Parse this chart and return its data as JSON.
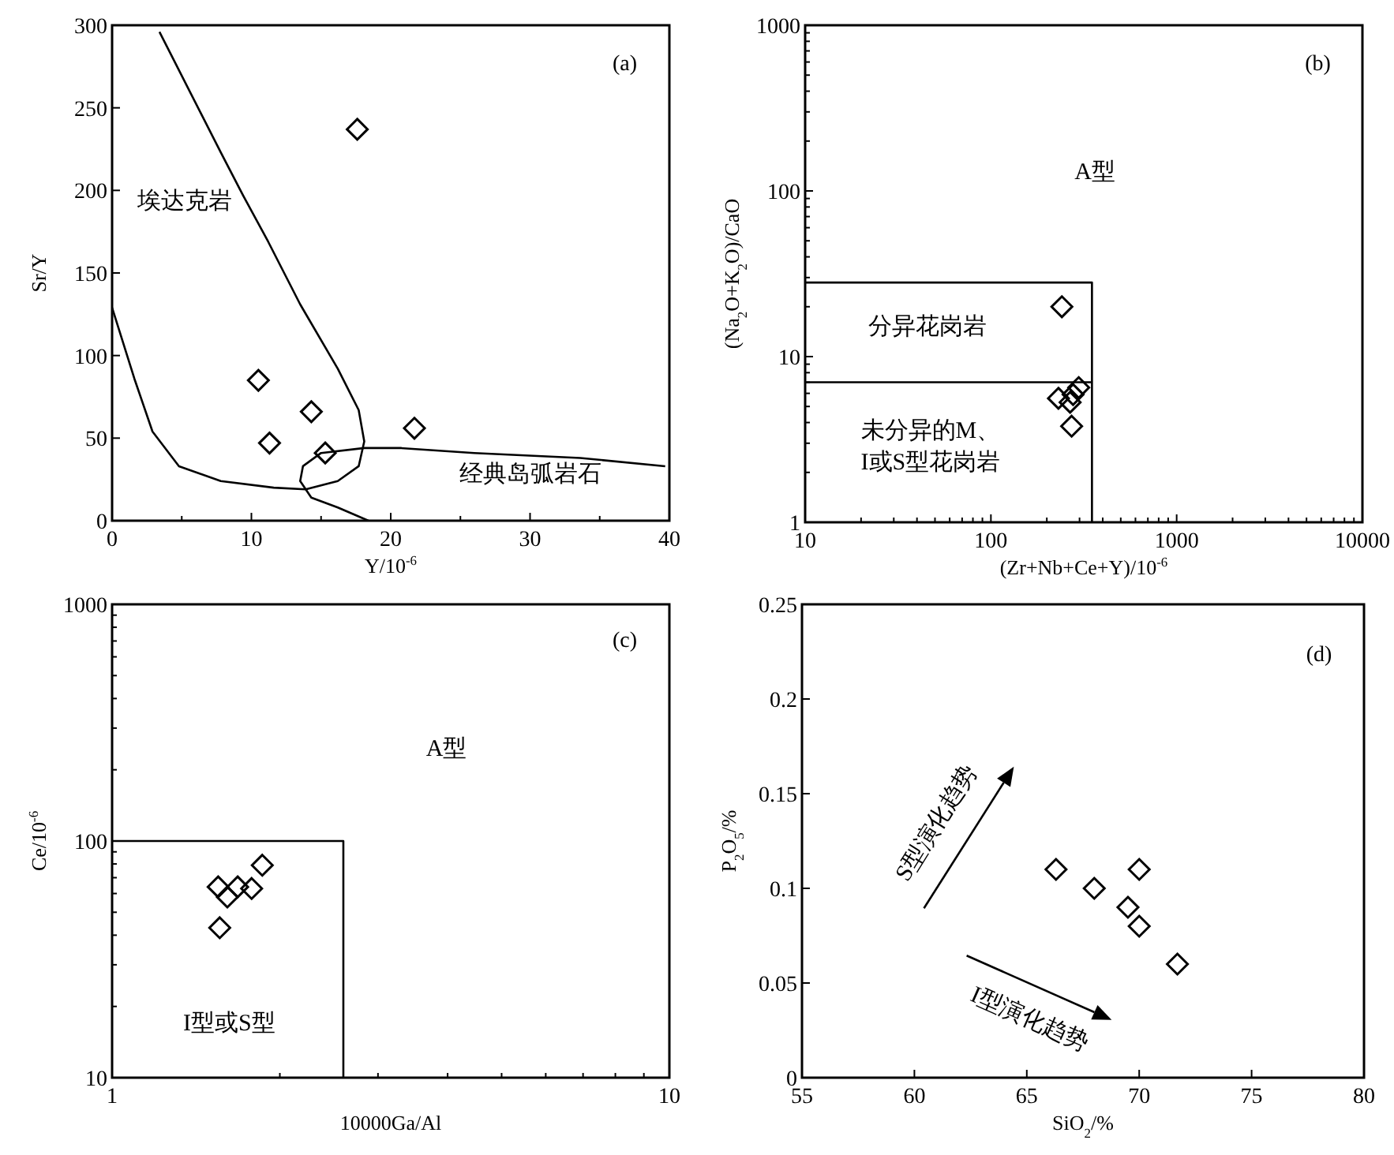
{
  "chart_data": [
    {
      "type": "scatter",
      "xlabel": "Y/10$^{-6}$",
      "ylabel": "Sr/Y",
      "xlim": [
        0,
        40
      ],
      "ylim": [
        0,
        300
      ],
      "xticks": [
        0,
        {
          "value": 5,
          "label": null
        },
        10,
        {
          "value": 15,
          "label": null
        },
        20,
        {
          "value": 25,
          "label": null
        },
        30,
        {
          "value": 35,
          "label": null
        },
        40
      ],
      "yticks": [
        0,
        50,
        100,
        150,
        200,
        250,
        300
      ],
      "annotations": [
        "(a)",
        "埃达克岩",
        "经典岛弧岩石"
      ],
      "series": [
        {
          "color": "#000000",
          "marker": "diamond",
          "x": [
            17.6,
            10.5,
            14.3,
            11.3,
            15.3,
            21.7
          ],
          "values": [
            237,
            85,
            66,
            47,
            41,
            56
          ]
        },
        {
          "type": "line",
          "color": "#000000",
          "x": [
            3.4,
            7.8,
            9.4,
            11.2,
            13.5,
            16.2,
            17.7,
            18.1,
            17.7,
            16.2,
            13.9,
            11.6,
            7.8,
            4.8,
            2.9,
            1.6,
            0
          ],
          "values": [
            296,
            223,
            197,
            169,
            131,
            92,
            67,
            48,
            33,
            24,
            19,
            20,
            24,
            33,
            54,
            86,
            129
          ]
        },
        {
          "type": "line",
          "color": "#000000",
          "x": [
            18.4,
            16.2,
            14.3,
            13.5,
            13.7,
            15,
            18.1,
            20.7,
            26,
            33.6,
            39.7
          ],
          "values": [
            0,
            8,
            14,
            24,
            33,
            41,
            44,
            44,
            41,
            38,
            33
          ]
        }
      ]
    },
    {
      "type": "scatter",
      "xlabel": "(Zr+Nb+Ce+Y)/10$^{-6}$",
      "ylabel": "(Na$_{2}$O+K$_{2}$O)/CaO",
      "log": "xy",
      "xlim": [
        10,
        10000
      ],
      "ylim": [
        1,
        1000
      ],
      "xticks": [
        10,
        {
          "value": 20,
          "label": null
        },
        {
          "value": 30,
          "label": null
        },
        {
          "value": 40,
          "label": null
        },
        {
          "value": 50,
          "label": null
        },
        {
          "value": 60,
          "label": null
        },
        {
          "value": 70,
          "label": null
        },
        {
          "value": 80,
          "label": null
        },
        {
          "value": 90,
          "label": null
        },
        100,
        {
          "value": 200,
          "label": null
        },
        {
          "value": 300,
          "label": null
        },
        {
          "value": 400,
          "label": null
        },
        {
          "value": 500,
          "label": null
        },
        {
          "value": 600,
          "label": null
        },
        {
          "value": 700,
          "label": null
        },
        {
          "value": 800,
          "label": null
        },
        {
          "value": 900,
          "label": null
        },
        1000,
        {
          "value": 2000,
          "label": null
        },
        {
          "value": 3000,
          "label": null
        },
        {
          "value": 4000,
          "label": null
        },
        {
          "value": 5000,
          "label": null
        },
        {
          "value": 6000,
          "label": null
        },
        {
          "value": 7000,
          "label": null
        },
        {
          "value": 8000,
          "label": null
        },
        {
          "value": 9000,
          "label": null
        },
        10000
      ],
      "yticks": [
        1,
        {
          "value": 2,
          "label": null
        },
        {
          "value": 3,
          "label": null
        },
        {
          "value": 4,
          "label": null
        },
        {
          "value": 5,
          "label": null
        },
        {
          "value": 6,
          "label": null
        },
        {
          "value": 7,
          "label": null
        },
        {
          "value": 8,
          "label": null
        },
        {
          "value": 9,
          "label": null
        },
        10,
        {
          "value": 20,
          "label": null
        },
        {
          "value": 30,
          "label": null
        },
        {
          "value": 40,
          "label": null
        },
        {
          "value": 50,
          "label": null
        },
        {
          "value": 60,
          "label": null
        },
        {
          "value": 70,
          "label": null
        },
        {
          "value": 80,
          "label": null
        },
        {
          "value": 90,
          "label": null
        },
        100,
        {
          "value": 200,
          "label": null
        },
        {
          "value": 300,
          "label": null
        },
        {
          "value": 400,
          "label": null
        },
        {
          "value": 500,
          "label": null
        },
        {
          "value": 600,
          "label": null
        },
        {
          "value": 700,
          "label": null
        },
        {
          "value": 800,
          "label": null
        },
        {
          "value": 900,
          "label": null
        },
        1000
      ],
      "annotations": [
        "(b)",
        "A型",
        "分异花岗岩",
        "未分异的M、\nI或S型花岗岩"
      ],
      "series": [
        {
          "color": "#000000",
          "marker": "diamond",
          "x": [
            241,
            231,
            272,
            297,
            267,
            277
          ],
          "values": [
            20,
            5.6,
            3.8,
            6.5,
            5.3,
            5.9
          ]
        },
        {
          "type": "line",
          "color": "#000000",
          "x": [
            10,
            350,
            350
          ],
          "values": [
            28,
            28,
            1
          ]
        },
        {
          "type": "line",
          "color": "#000000",
          "x": [
            10,
            350
          ],
          "values": [
            7,
            7
          ]
        }
      ]
    },
    {
      "type": "scatter",
      "xlabel": "10000Ga/Al",
      "ylabel": "Ce/10$^{-6}$",
      "log": "xy",
      "xlim": [
        1,
        10
      ],
      "ylim": [
        10,
        1000
      ],
      "xticks": [
        1,
        {
          "value": 2,
          "label": null
        },
        {
          "value": 3,
          "label": null
        },
        {
          "value": 4,
          "label": null
        },
        {
          "value": 5,
          "label": null
        },
        {
          "value": 6,
          "label": null
        },
        {
          "value": 7,
          "label": null
        },
        {
          "value": 8,
          "label": null
        },
        {
          "value": 9,
          "label": null
        },
        10
      ],
      "yticks": [
        10,
        {
          "value": 20,
          "label": null
        },
        {
          "value": 30,
          "label": null
        },
        {
          "value": 40,
          "label": null
        },
        {
          "value": 50,
          "label": null
        },
        {
          "value": 60,
          "label": null
        },
        {
          "value": 70,
          "label": null
        },
        {
          "value": 80,
          "label": null
        },
        {
          "value": 90,
          "label": null
        },
        100,
        {
          "value": 200,
          "label": null
        },
        {
          "value": 300,
          "label": null
        },
        {
          "value": 400,
          "label": null
        },
        {
          "value": 500,
          "label": null
        },
        {
          "value": 600,
          "label": null
        },
        {
          "value": 700,
          "label": null
        },
        {
          "value": 800,
          "label": null
        },
        {
          "value": 900,
          "label": null
        },
        1000
      ],
      "annotations": [
        "(c)",
        "A型",
        "I型或S型"
      ],
      "series": [
        {
          "color": "#000000",
          "marker": "diamond",
          "x": [
            1.55,
            1.61,
            1.68,
            1.78,
            1.86,
            1.56
          ],
          "values": [
            64,
            58,
            64,
            63,
            79,
            43
          ]
        },
        {
          "type": "line",
          "color": "#000000",
          "x": [
            1,
            2.6,
            2.6
          ],
          "values": [
            100,
            100,
            10
          ]
        }
      ]
    },
    {
      "type": "scatter",
      "xlabel": "SiO$_{2}$/%",
      "ylabel": "P$_{2}$O$_{5}$/%",
      "xlim": [
        55,
        80
      ],
      "ylim": [
        0,
        0.25
      ],
      "xticks": [
        55,
        60,
        65,
        70,
        75,
        80
      ],
      "yticks": [
        0,
        0.05,
        0.1,
        0.15,
        0.2,
        0.25
      ],
      "annotations": [
        "(d)",
        "S型演化趋势",
        "I型演化趋势"
      ],
      "series": [
        {
          "color": "#000000",
          "marker": "diamond",
          "x": [
            66.3,
            68,
            70,
            69.5,
            70,
            71.7
          ],
          "values": [
            0.11,
            0.1,
            0.11,
            0.09,
            0.08,
            0.06
          ]
        }
      ]
    }
  ]
}
